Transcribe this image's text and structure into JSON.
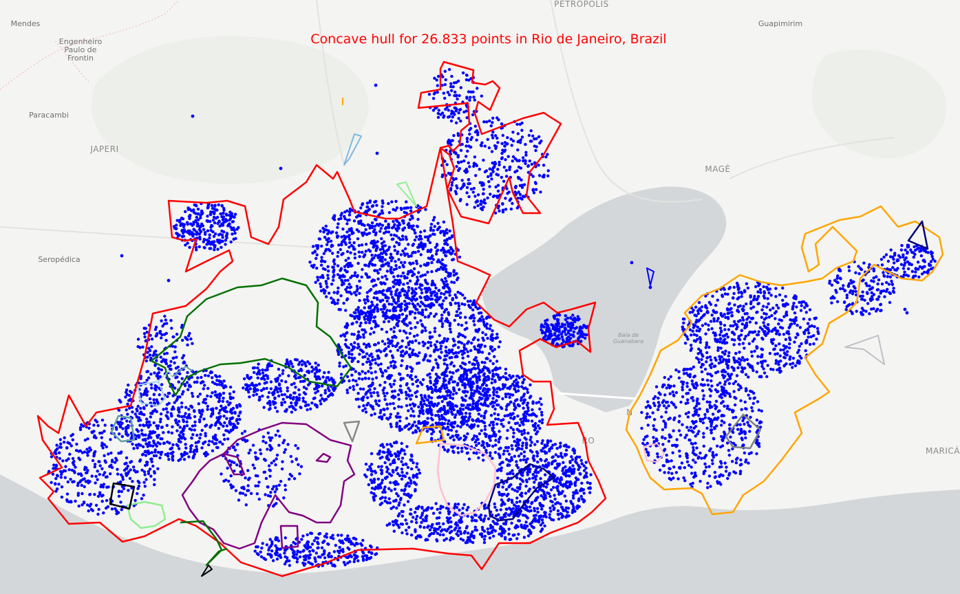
{
  "title": "Concave hull for 26.833 points in Rio de Janeiro, Brazil",
  "colors": {
    "title": "#ff0000",
    "points": "#0000ff",
    "hull_main": "#ff0000",
    "hull_east": "#ffa500",
    "land": "#f4f4f2",
    "water": "#d4d7da"
  },
  "places": {
    "petropolis": "PETRÓPOLIS",
    "mendes": "Mendes",
    "engenheiro_1": "Engenheiro",
    "engenheiro_2": "Paulo de",
    "engenheiro_3": "Frontin",
    "paracambi": "Paracambi",
    "japeri": "JAPERI",
    "seropedica": "Seropédica",
    "guapimirim": "Guapimirim",
    "mage": "MAGÉ",
    "baia_1": "Baía de",
    "baia_2": "Guanabara",
    "marica": "MARICÁ",
    "rio_partial": "RO",
    "niteroi_partial": "N"
  }
}
